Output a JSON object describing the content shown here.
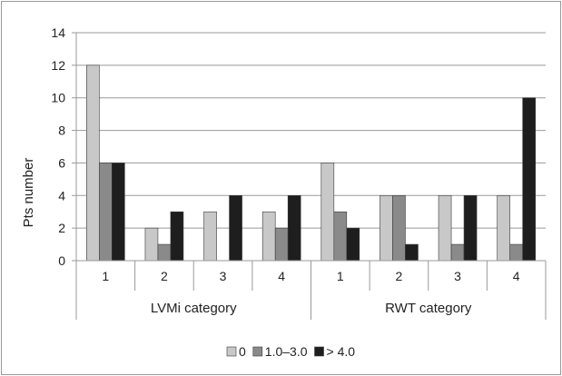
{
  "chart_data": {
    "type": "bar",
    "ylabel": "Pts number",
    "ylim": [
      0,
      14
    ],
    "yticks": [
      0,
      2,
      4,
      6,
      8,
      10,
      12,
      14
    ],
    "grid": true,
    "legend_position": "bottom",
    "groups": [
      {
        "label": "LVMi category",
        "categories": [
          "1",
          "2",
          "3",
          "4"
        ]
      },
      {
        "label": "RWT category",
        "categories": [
          "1",
          "2",
          "3",
          "4"
        ]
      }
    ],
    "series": [
      {
        "name": "0",
        "color": "#c8c8c8",
        "values": [
          12,
          2,
          3,
          3,
          6,
          4,
          4,
          4
        ]
      },
      {
        "name": "1.0–3.0",
        "color": "#8a8a8a",
        "values": [
          6,
          1,
          0,
          2,
          3,
          4,
          1,
          1
        ]
      },
      {
        "name": "> 4.0",
        "color": "#1e1e1e",
        "values": [
          6,
          3,
          4,
          4,
          2,
          1,
          4,
          10
        ]
      }
    ]
  }
}
